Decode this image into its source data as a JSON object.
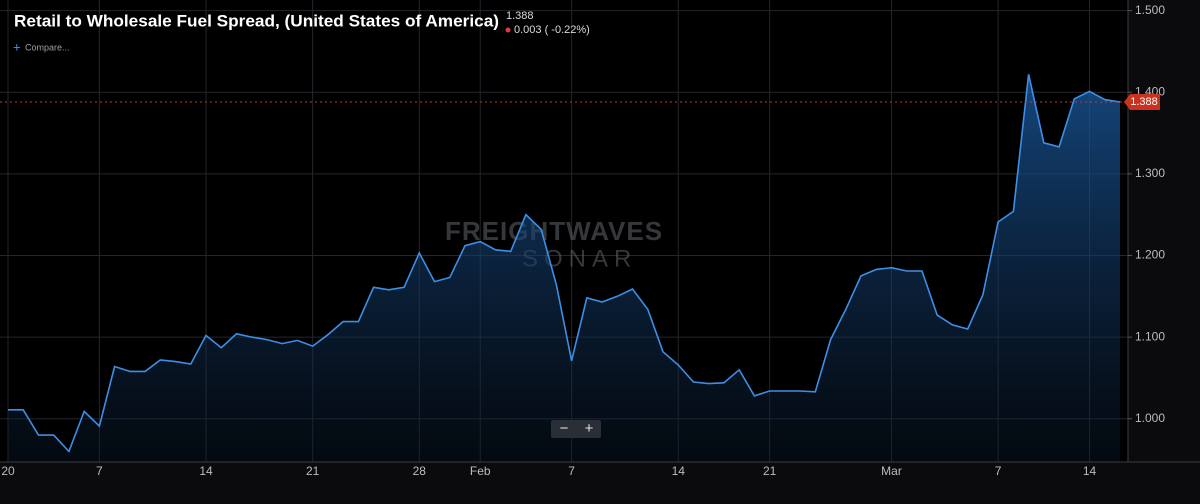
{
  "chart_data": {
    "type": "area",
    "title": "Retail to Wholesale Fuel Spread, (United States of America)",
    "change": "0.003 ( -0.22%)",
    "compare": "Compare...",
    "watermark": [
      "FREIGHTWAVES",
      "SONAR"
    ],
    "color": "#3d8fe6",
    "categories": [
      "20",
      null,
      null,
      null,
      null,
      null,
      "7",
      null,
      null,
      null,
      null,
      null,
      null,
      "14",
      null,
      null,
      null,
      null,
      null,
      null,
      "21",
      null,
      null,
      null,
      null,
      null,
      null,
      "28",
      null,
      null,
      null,
      "Feb",
      null,
      null,
      null,
      null,
      null,
      "7",
      null,
      null,
      null,
      null,
      null,
      null,
      "14",
      null,
      null,
      null,
      null,
      null,
      "21",
      null,
      null,
      null,
      null,
      null,
      null,
      null,
      "Mar",
      null,
      null,
      null,
      null,
      null,
      null,
      "7",
      null,
      null,
      null,
      null,
      null,
      "14",
      null,
      null
    ],
    "values": [
      1.011,
      1.011,
      0.98,
      0.98,
      0.96,
      1.009,
      0.991,
      1.064,
      1.058,
      1.058,
      1.072,
      1.07,
      1.067,
      1.102,
      1.087,
      1.104,
      1.1,
      1.097,
      1.092,
      1.096,
      1.089,
      1.103,
      1.119,
      1.119,
      1.161,
      1.158,
      1.161,
      1.203,
      1.168,
      1.173,
      1.212,
      1.217,
      1.207,
      1.205,
      1.25,
      1.232,
      1.164,
      1.071,
      1.148,
      1.143,
      1.15,
      1.159,
      1.134,
      1.082,
      1.066,
      1.045,
      1.043,
      1.044,
      1.06,
      1.028,
      1.034,
      1.034,
      1.034,
      1.033,
      1.097,
      1.134,
      1.175,
      1.183,
      1.185,
      1.181,
      1.181,
      1.127,
      1.115,
      1.11,
      1.152,
      1.241,
      1.254,
      1.422,
      1.338,
      1.333,
      1.392,
      1.401,
      1.391,
      1.388
    ],
    "ylim": [
      0.947,
      1.513
    ],
    "yticks": [
      {
        "value": 1.0,
        "label": "1.000"
      },
      {
        "value": 1.1,
        "label": "1.100"
      },
      {
        "value": 1.2,
        "label": "1.200"
      },
      {
        "value": 1.3,
        "label": "1.300"
      },
      {
        "value": 1.4,
        "label": "1.400"
      },
      {
        "value": 1.5,
        "label": "1.500"
      }
    ],
    "grid": true
  }
}
